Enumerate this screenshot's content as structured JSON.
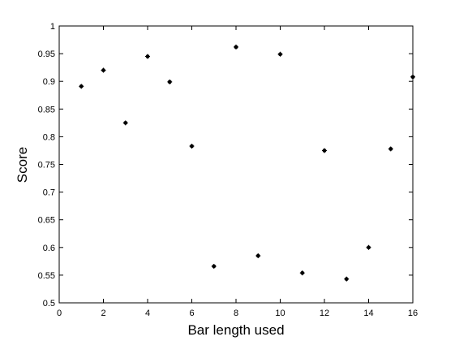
{
  "chart_data": {
    "type": "scatter",
    "title": "",
    "xlabel": "Bar length used",
    "ylabel": "Score",
    "xlim": [
      0,
      16
    ],
    "ylim": [
      0.5,
      1
    ],
    "grid": false,
    "x_ticks": [
      0,
      2,
      4,
      6,
      8,
      10,
      12,
      14,
      16
    ],
    "y_ticks": [
      0.5,
      0.55,
      0.6,
      0.65,
      0.7,
      0.75,
      0.8,
      0.85,
      0.9,
      0.95,
      1
    ],
    "x_tick_labels": [
      "0",
      "2",
      "4",
      "6",
      "8",
      "10",
      "12",
      "14",
      "16"
    ],
    "y_tick_labels": [
      "0.5",
      "0.55",
      "0.6",
      "0.65",
      "0.7",
      "0.75",
      "0.8",
      "0.85",
      "0.9",
      "0.95",
      "1"
    ],
    "marker_color": "#000000",
    "series": [
      {
        "x": [
          1,
          2,
          3,
          4,
          5,
          6,
          7,
          8,
          9,
          10,
          11,
          12,
          13,
          14,
          15,
          16
        ],
        "y": [
          0.891,
          0.92,
          0.825,
          0.945,
          0.899,
          0.783,
          0.566,
          0.962,
          0.585,
          0.949,
          0.554,
          0.775,
          0.543,
          0.6,
          0.778,
          0.908
        ]
      }
    ]
  }
}
